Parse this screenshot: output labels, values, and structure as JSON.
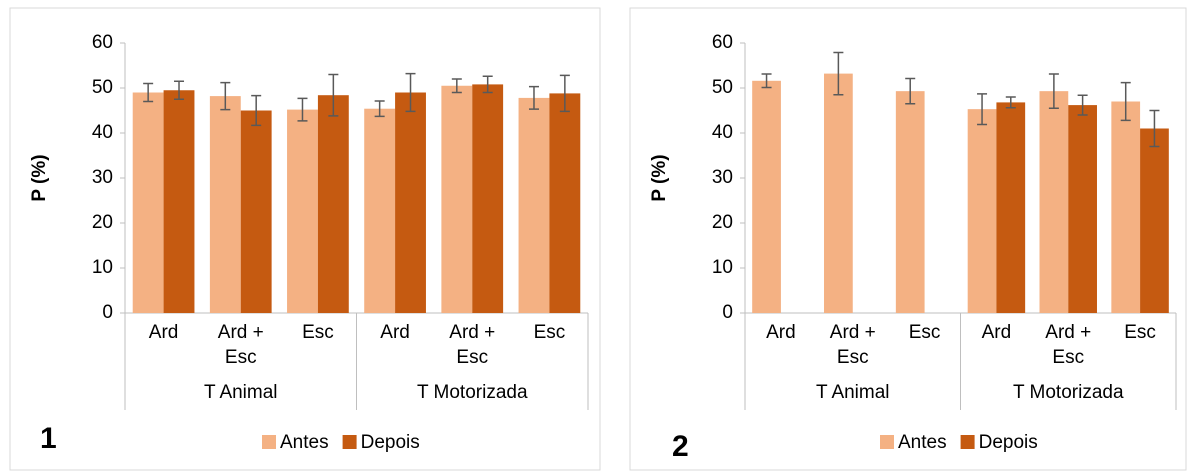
{
  "chart_data": [
    {
      "type": "bar",
      "label": "1",
      "ylabel": "P (%)",
      "groups": [
        {
          "name": "T Animal",
          "categories": [
            "Ard",
            "Ard + Esc",
            "Esc"
          ]
        },
        {
          "name": "T Motorizada",
          "categories": [
            "Ard",
            "Ard + Esc",
            "Esc"
          ]
        }
      ],
      "series": [
        {
          "name": "Antes",
          "color": "#f4b183",
          "values": [
            49,
            48.2,
            45.2,
            45.4,
            50.5,
            47.8
          ],
          "errors": [
            2,
            3,
            2.5,
            1.7,
            1.5,
            2.5
          ]
        },
        {
          "name": "Depois",
          "color": "#c55a11",
          "values": [
            49.5,
            45,
            48.4,
            49,
            50.8,
            48.8
          ],
          "errors": [
            2,
            3.3,
            4.6,
            4.2,
            1.8,
            4
          ]
        }
      ],
      "ylim": [
        0,
        60
      ],
      "yticks": [
        0,
        10,
        20,
        30,
        40,
        50,
        60
      ],
      "legend": "bottom"
    },
    {
      "type": "bar",
      "label": "2",
      "ylabel": "P (%)",
      "groups": [
        {
          "name": "T Animal",
          "categories": [
            "Ard",
            "Ard + Esc",
            "Esc"
          ]
        },
        {
          "name": "T Motorizada",
          "categories": [
            "Ard",
            "Ard + Esc",
            "Esc"
          ]
        }
      ],
      "series": [
        {
          "name": "Antes",
          "color": "#f4b183",
          "values": [
            51.6,
            53.2,
            49.3,
            45.3,
            49.3,
            47
          ],
          "errors": [
            1.5,
            4.7,
            2.8,
            3.4,
            3.8,
            4.2
          ]
        },
        {
          "name": "Depois",
          "color": "#c55a11",
          "values": [
            null,
            null,
            null,
            46.8,
            46.2,
            41
          ],
          "errors": [
            null,
            null,
            null,
            1.2,
            2.2,
            4
          ]
        }
      ],
      "ylim": [
        0,
        60
      ],
      "yticks": [
        0,
        10,
        20,
        30,
        40,
        50,
        60
      ],
      "legend": "bottom"
    }
  ]
}
